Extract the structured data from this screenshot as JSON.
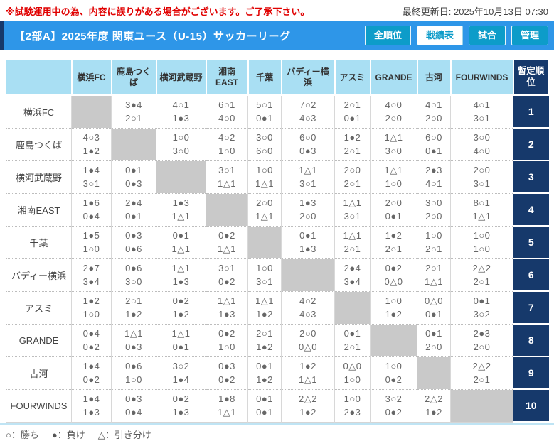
{
  "topbar": {
    "disclaimer": "※試験運用中の為、内容に誤りがある場合がございます。ご了承下さい。",
    "last_updated": "最終更新日: 2025年10月13日 07:30"
  },
  "header": {
    "title": "【2部A】2025年度 関東ユース（U-15）サッカーリーグ",
    "buttons": [
      {
        "label": "全順位",
        "active": false
      },
      {
        "label": "戦績表",
        "active": true
      },
      {
        "label": "試合",
        "active": false
      },
      {
        "label": "管理",
        "active": false
      }
    ]
  },
  "colors": {
    "title_bar_blue": "#2e96e8",
    "button_teal": "#0d9cc9",
    "rank_navy": "#16396b",
    "table_header_blue": "#a9dff3",
    "diagonal_gray": "#c9c9c9",
    "disclaimer_red": "#e00000"
  },
  "table": {
    "rank_header": "暫定順位",
    "columns": [
      "横浜FC",
      "鹿島つくば",
      "横河武蔵野",
      "湘南EAST",
      "千葉",
      "バディー横浜",
      "アスミ",
      "GRANDE",
      "古河",
      "FOURWINDS"
    ],
    "rows": [
      {
        "team": "横浜FC",
        "rank": "1",
        "results": [
          null,
          [
            "3●4",
            "2○1"
          ],
          [
            "4○1",
            "1●3"
          ],
          [
            "6○1",
            "4○0"
          ],
          [
            "5○1",
            "0●1"
          ],
          [
            "7○2",
            "4○3"
          ],
          [
            "2○1",
            "0●1"
          ],
          [
            "4○0",
            "2○0"
          ],
          [
            "4○1",
            "2○0"
          ],
          [
            "4○1",
            "3○1"
          ]
        ]
      },
      {
        "team": "鹿島つくば",
        "rank": "2",
        "results": [
          [
            "4○3",
            "1●2"
          ],
          null,
          [
            "1○0",
            "3○0"
          ],
          [
            "4○2",
            "1○0"
          ],
          [
            "3○0",
            "6○0"
          ],
          [
            "6○0",
            "0●3"
          ],
          [
            "1●2",
            "2○1"
          ],
          [
            "1△1",
            "3○0"
          ],
          [
            "6○0",
            "0●1"
          ],
          [
            "3○0",
            "4○0"
          ]
        ]
      },
      {
        "team": "横河武蔵野",
        "rank": "3",
        "results": [
          [
            "1●4",
            "3○1"
          ],
          [
            "0●1",
            "0●3"
          ],
          null,
          [
            "3○1",
            "1△1"
          ],
          [
            "1○0",
            "1△1"
          ],
          [
            "1△1",
            "3○1"
          ],
          [
            "2○0",
            "2○1"
          ],
          [
            "1△1",
            "1○0"
          ],
          [
            "2●3",
            "4○1"
          ],
          [
            "2○0",
            "3○1"
          ]
        ]
      },
      {
        "team": "湘南EAST",
        "rank": "4",
        "results": [
          [
            "1●6",
            "0●4"
          ],
          [
            "2●4",
            "0●1"
          ],
          [
            "1●3",
            "1△1"
          ],
          null,
          [
            "2○0",
            "1△1"
          ],
          [
            "1●3",
            "2○0"
          ],
          [
            "1△1",
            "3○1"
          ],
          [
            "2○0",
            "0●1"
          ],
          [
            "3○0",
            "2○0"
          ],
          [
            "8○1",
            "1△1"
          ]
        ]
      },
      {
        "team": "千葉",
        "rank": "5",
        "results": [
          [
            "1●5",
            "1○0"
          ],
          [
            "0●3",
            "0●6"
          ],
          [
            "0●1",
            "1△1"
          ],
          [
            "0●2",
            "1△1"
          ],
          null,
          [
            "0●1",
            "1●3"
          ],
          [
            "1△1",
            "2○1"
          ],
          [
            "1●2",
            "2○1"
          ],
          [
            "1○0",
            "2○1"
          ],
          [
            "1○0",
            "1○0"
          ]
        ]
      },
      {
        "team": "バディー横浜",
        "rank": "6",
        "results": [
          [
            "2●7",
            "3●4"
          ],
          [
            "0●6",
            "3○0"
          ],
          [
            "1△1",
            "1●3"
          ],
          [
            "3○1",
            "0●2"
          ],
          [
            "1○0",
            "3○1"
          ],
          null,
          [
            "2●4",
            "3●4"
          ],
          [
            "0●2",
            "0△0"
          ],
          [
            "2○1",
            "1△1"
          ],
          [
            "2△2",
            "2○1"
          ]
        ]
      },
      {
        "team": "アスミ",
        "rank": "7",
        "results": [
          [
            "1●2",
            "1○0"
          ],
          [
            "2○1",
            "1●2"
          ],
          [
            "0●2",
            "1●2"
          ],
          [
            "1△1",
            "1●3"
          ],
          [
            "1△1",
            "1●2"
          ],
          [
            "4○2",
            "4○3"
          ],
          null,
          [
            "1○0",
            "1●2"
          ],
          [
            "0△0",
            "0●1"
          ],
          [
            "0●1",
            "3○2"
          ]
        ]
      },
      {
        "team": "GRANDE",
        "rank": "8",
        "results": [
          [
            "0●4",
            "0●2"
          ],
          [
            "1△1",
            "0●3"
          ],
          [
            "1△1",
            "0●1"
          ],
          [
            "0●2",
            "1○0"
          ],
          [
            "2○1",
            "1●2"
          ],
          [
            "2○0",
            "0△0"
          ],
          [
            "0●1",
            "2○1"
          ],
          null,
          [
            "0●1",
            "2○0"
          ],
          [
            "2●3",
            "2○0"
          ]
        ]
      },
      {
        "team": "古河",
        "rank": "9",
        "results": [
          [
            "1●4",
            "0●2"
          ],
          [
            "0●6",
            "1○0"
          ],
          [
            "3○2",
            "1●4"
          ],
          [
            "0●3",
            "0●2"
          ],
          [
            "0●1",
            "1●2"
          ],
          [
            "1●2",
            "1△1"
          ],
          [
            "0△0",
            "1○0"
          ],
          [
            "1○0",
            "0●2"
          ],
          null,
          [
            "2△2",
            "2○1"
          ]
        ]
      },
      {
        "team": "FOURWINDS",
        "rank": "10",
        "results": [
          [
            "1●4",
            "1●3"
          ],
          [
            "0●3",
            "0●4"
          ],
          [
            "0●2",
            "1●3"
          ],
          [
            "1●8",
            "1△1"
          ],
          [
            "0●1",
            "0●1"
          ],
          [
            "2△2",
            "1●2"
          ],
          [
            "1○0",
            "2●3"
          ],
          [
            "3○2",
            "0●2"
          ],
          [
            "2△2",
            "1●2"
          ],
          null
        ]
      }
    ]
  },
  "legend": {
    "items": [
      "○：勝ち",
      "●：負け",
      "△：引き分け"
    ]
  }
}
